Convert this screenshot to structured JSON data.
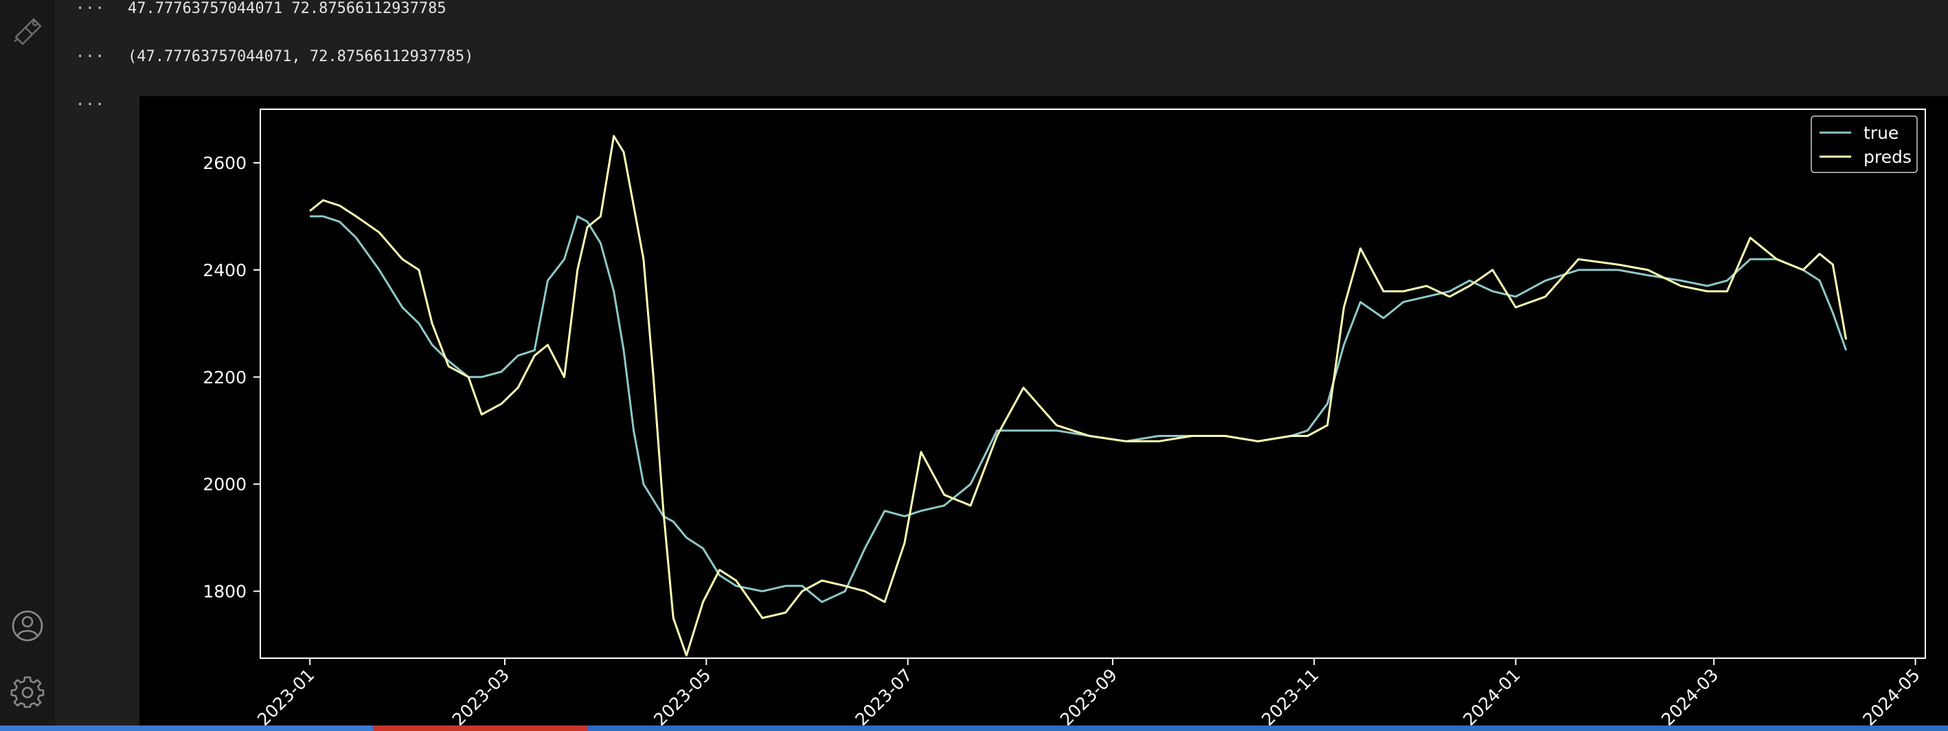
{
  "activity_bar": {
    "top_icon": "notebook-pen-icon",
    "bottom_icons": [
      "account-icon",
      "gear-icon"
    ]
  },
  "cells": [
    {
      "prompt": "···",
      "text": "47.77763757044071 72.87566112937785"
    },
    {
      "prompt": "···",
      "text": "(47.77763757044071, 72.87566112937785)"
    },
    {
      "prompt": "···",
      "text": ""
    }
  ],
  "colors": {
    "true": "#8dc8c8",
    "preds": "#ffffb3",
    "axes": "#ffffff",
    "background": "#000000"
  },
  "chart_data": {
    "type": "line",
    "title": "",
    "xlabel": "",
    "ylabel": "",
    "x_type": "date",
    "xlim": [
      "2022-12-17",
      "2024-05-04"
    ],
    "ylim": [
      1675,
      2700
    ],
    "y_ticks": [
      1800,
      2000,
      2200,
      2400,
      2600
    ],
    "x_ticks": [
      "2023-01",
      "2023-03",
      "2023-05",
      "2023-07",
      "2023-09",
      "2023-11",
      "2024-01",
      "2024-03",
      "2024-05"
    ],
    "x_tick_dates": [
      "2023-01-01",
      "2023-03-01",
      "2023-05-01",
      "2023-07-01",
      "2023-09-01",
      "2023-11-01",
      "2024-01-01",
      "2024-03-01",
      "2024-05-01"
    ],
    "legend": {
      "position": "top-right",
      "entries": [
        "true",
        "preds"
      ]
    },
    "grid": false,
    "series": [
      {
        "name": "true",
        "x": [
          "2023-01-01",
          "2023-01-05",
          "2023-01-10",
          "2023-01-15",
          "2023-01-22",
          "2023-01-29",
          "2023-02-03",
          "2023-02-07",
          "2023-02-12",
          "2023-02-18",
          "2023-02-22",
          "2023-02-28",
          "2023-03-05",
          "2023-03-10",
          "2023-03-14",
          "2023-03-19",
          "2023-03-23",
          "2023-03-26",
          "2023-03-30",
          "2023-04-03",
          "2023-04-06",
          "2023-04-09",
          "2023-04-12",
          "2023-04-15",
          "2023-04-18",
          "2023-04-21",
          "2023-04-25",
          "2023-04-30",
          "2023-05-05",
          "2023-05-10",
          "2023-05-18",
          "2023-05-25",
          "2023-05-30",
          "2023-06-05",
          "2023-06-12",
          "2023-06-18",
          "2023-06-24",
          "2023-06-30",
          "2023-07-05",
          "2023-07-12",
          "2023-07-20",
          "2023-07-28",
          "2023-08-05",
          "2023-08-15",
          "2023-08-25",
          "2023-09-05",
          "2023-09-15",
          "2023-09-25",
          "2023-10-05",
          "2023-10-15",
          "2023-10-25",
          "2023-10-30",
          "2023-11-05",
          "2023-11-10",
          "2023-11-15",
          "2023-11-22",
          "2023-11-28",
          "2023-12-05",
          "2023-12-12",
          "2023-12-18",
          "2023-12-25",
          "2024-01-01",
          "2024-01-10",
          "2024-01-20",
          "2024-02-01",
          "2024-02-10",
          "2024-02-20",
          "2024-02-28",
          "2024-03-05",
          "2024-03-12",
          "2024-03-20",
          "2024-03-28",
          "2024-04-02",
          "2024-04-06",
          "2024-04-10"
        ],
        "values": [
          2500,
          2500,
          2490,
          2460,
          2400,
          2330,
          2300,
          2260,
          2230,
          2200,
          2200,
          2210,
          2240,
          2250,
          2380,
          2420,
          2500,
          2490,
          2450,
          2360,
          2250,
          2100,
          2000,
          1970,
          1940,
          1930,
          1900,
          1880,
          1830,
          1810,
          1800,
          1810,
          1810,
          1780,
          1800,
          1880,
          1950,
          1940,
          1950,
          1960,
          2000,
          2100,
          2100,
          2100,
          2090,
          2080,
          2090,
          2090,
          2090,
          2080,
          2090,
          2100,
          2150,
          2260,
          2340,
          2310,
          2340,
          2350,
          2360,
          2380,
          2360,
          2350,
          2380,
          2400,
          2400,
          2390,
          2380,
          2370,
          2380,
          2420,
          2420,
          2400,
          2380,
          2320,
          2250
        ]
      },
      {
        "name": "preds",
        "x": [
          "2023-01-01",
          "2023-01-05",
          "2023-01-10",
          "2023-01-15",
          "2023-01-22",
          "2023-01-29",
          "2023-02-03",
          "2023-02-07",
          "2023-02-12",
          "2023-02-18",
          "2023-02-22",
          "2023-02-28",
          "2023-03-05",
          "2023-03-10",
          "2023-03-14",
          "2023-03-19",
          "2023-03-23",
          "2023-03-26",
          "2023-03-30",
          "2023-04-03",
          "2023-04-06",
          "2023-04-09",
          "2023-04-12",
          "2023-04-15",
          "2023-04-18",
          "2023-04-21",
          "2023-04-25",
          "2023-04-30",
          "2023-05-05",
          "2023-05-10",
          "2023-05-18",
          "2023-05-25",
          "2023-05-30",
          "2023-06-05",
          "2023-06-12",
          "2023-06-18",
          "2023-06-24",
          "2023-06-30",
          "2023-07-05",
          "2023-07-12",
          "2023-07-20",
          "2023-07-28",
          "2023-08-05",
          "2023-08-15",
          "2023-08-25",
          "2023-09-05",
          "2023-09-15",
          "2023-09-25",
          "2023-10-05",
          "2023-10-15",
          "2023-10-25",
          "2023-10-30",
          "2023-11-05",
          "2023-11-10",
          "2023-11-15",
          "2023-11-22",
          "2023-11-28",
          "2023-12-05",
          "2023-12-12",
          "2023-12-18",
          "2023-12-25",
          "2024-01-01",
          "2024-01-10",
          "2024-01-20",
          "2024-02-01",
          "2024-02-10",
          "2024-02-20",
          "2024-02-28",
          "2024-03-05",
          "2024-03-12",
          "2024-03-20",
          "2024-03-28",
          "2024-04-02",
          "2024-04-06",
          "2024-04-10"
        ],
        "values": [
          2510,
          2530,
          2520,
          2500,
          2470,
          2420,
          2400,
          2300,
          2220,
          2200,
          2130,
          2150,
          2180,
          2240,
          2260,
          2200,
          2400,
          2480,
          2500,
          2650,
          2620,
          2520,
          2420,
          2200,
          1950,
          1750,
          1680,
          1780,
          1840,
          1820,
          1750,
          1760,
          1800,
          1820,
          1810,
          1800,
          1780,
          1890,
          2060,
          1980,
          1960,
          2090,
          2180,
          2110,
          2090,
          2080,
          2080,
          2090,
          2090,
          2080,
          2090,
          2090,
          2110,
          2330,
          2440,
          2360,
          2360,
          2370,
          2350,
          2370,
          2400,
          2330,
          2350,
          2420,
          2410,
          2400,
          2370,
          2360,
          2360,
          2460,
          2420,
          2400,
          2430,
          2410,
          2270
        ]
      }
    ]
  }
}
